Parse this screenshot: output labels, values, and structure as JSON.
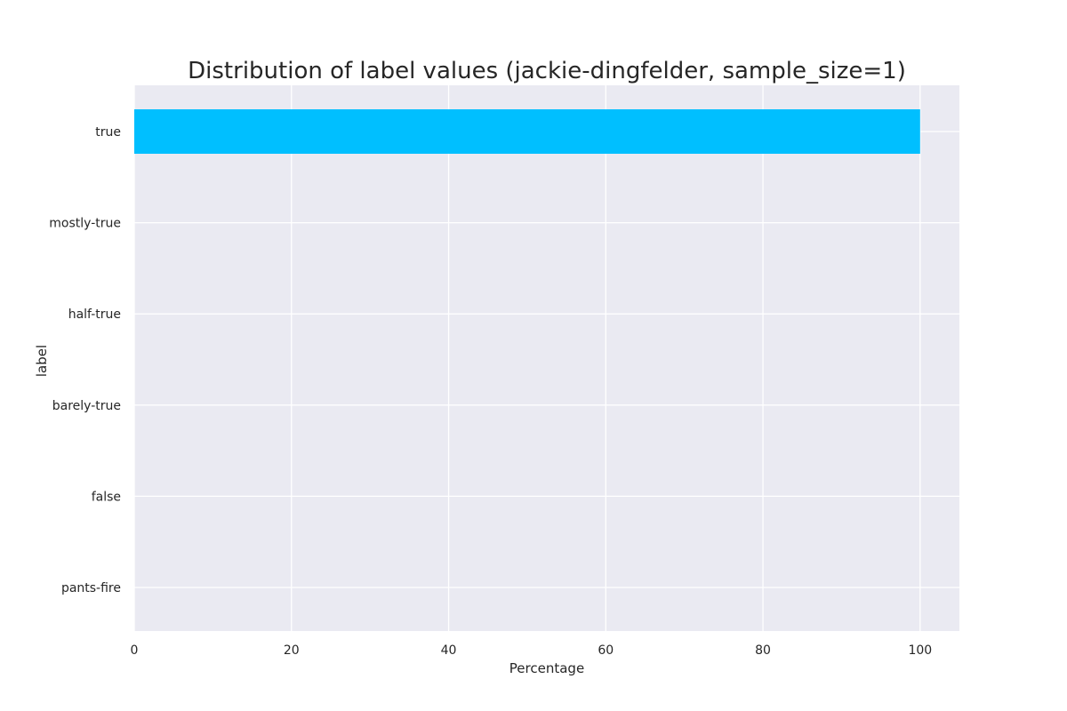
{
  "chart_data": {
    "type": "bar",
    "orientation": "horizontal",
    "title": "Distribution of label values (jackie-dingfelder, sample_size=1)",
    "xlabel": "Percentage",
    "ylabel": "label",
    "categories": [
      "true",
      "mostly-true",
      "half-true",
      "barely-true",
      "false",
      "pants-fire"
    ],
    "values": [
      100,
      0,
      0,
      0,
      0,
      0
    ],
    "xlim": [
      0,
      105
    ],
    "xticks": [
      0,
      20,
      40,
      60,
      80,
      100
    ],
    "grid": true,
    "colors": {
      "bar": "#00bfff",
      "background": "#eaeaf2",
      "grid": "#ffffff"
    }
  }
}
